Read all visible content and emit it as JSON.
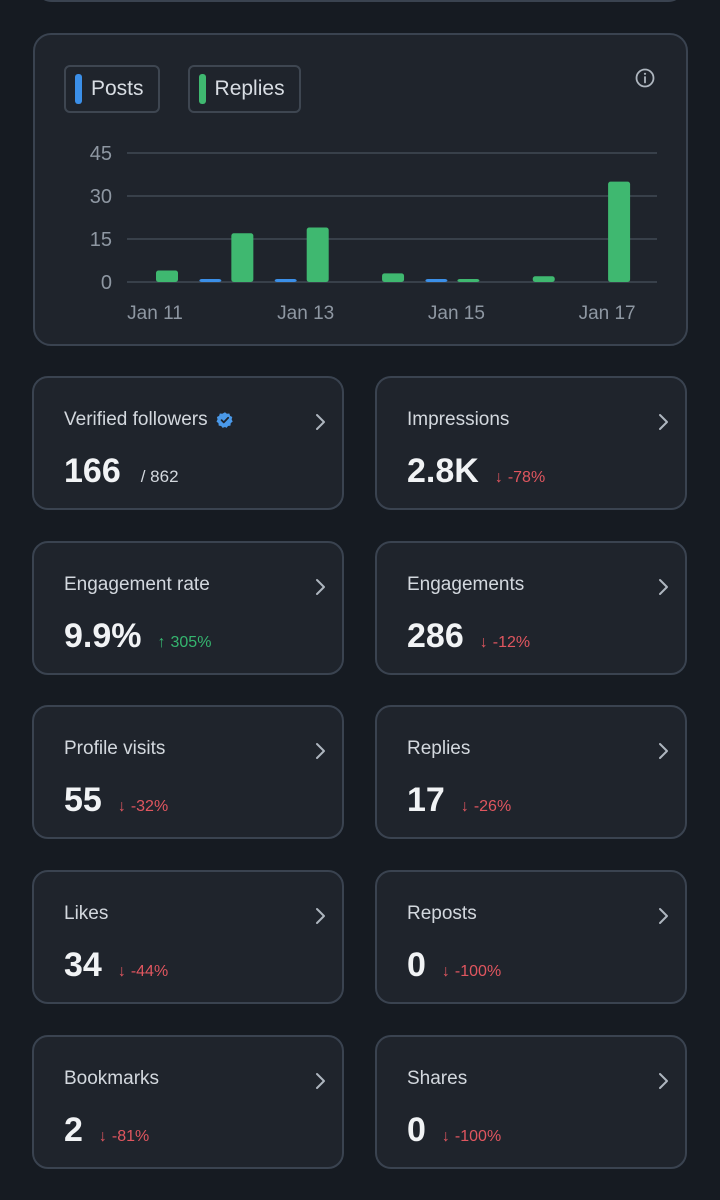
{
  "chart_data": {
    "type": "bar",
    "categories": [
      "Jan 11",
      "Jan 12",
      "Jan 13",
      "Jan 14",
      "Jan 15",
      "Jan 16",
      "Jan 17"
    ],
    "x_tick_labels": [
      "Jan 11",
      "Jan 13",
      "Jan 15",
      "Jan 17"
    ],
    "series": [
      {
        "name": "Posts",
        "color": "#3b8fe8",
        "values": [
          0,
          1,
          1,
          0,
          1,
          0,
          0
        ]
      },
      {
        "name": "Replies",
        "color": "#3fb870",
        "values": [
          4,
          17,
          19,
          3,
          1,
          2,
          35
        ]
      }
    ],
    "y_ticks": [
      0,
      15,
      30,
      45
    ],
    "ylim": [
      0,
      45
    ],
    "xlabel": "",
    "ylabel": ""
  },
  "legend": [
    {
      "label": "Posts",
      "color": "#3b8fe8"
    },
    {
      "label": "Replies",
      "color": "#3fb870"
    }
  ],
  "stats": [
    {
      "label": "Verified followers",
      "value": "166",
      "sub": "/ 862",
      "verified": true
    },
    {
      "label": "Impressions",
      "value": "2.8K",
      "arrow": "↓",
      "delta": "-78%",
      "dir": "down"
    },
    {
      "label": "Engagement rate",
      "value": "9.9%",
      "arrow": "↑",
      "delta": "305%",
      "dir": "up"
    },
    {
      "label": "Engagements",
      "value": "286",
      "arrow": "↓",
      "delta": "-12%",
      "dir": "down"
    },
    {
      "label": "Profile visits",
      "value": "55",
      "arrow": "↓",
      "delta": "-32%",
      "dir": "down"
    },
    {
      "label": "Replies",
      "value": "17",
      "arrow": "↓",
      "delta": "-26%",
      "dir": "down"
    },
    {
      "label": "Likes",
      "value": "34",
      "arrow": "↓",
      "delta": "-44%",
      "dir": "down"
    },
    {
      "label": "Reposts",
      "value": "0",
      "arrow": "↓",
      "delta": "-100%",
      "dir": "down"
    },
    {
      "label": "Bookmarks",
      "value": "2",
      "arrow": "↓",
      "delta": "-81%",
      "dir": "down"
    },
    {
      "label": "Shares",
      "value": "0",
      "arrow": "↓",
      "delta": "-100%",
      "dir": "down"
    }
  ],
  "colors": {
    "verified": "#4a99e9",
    "up": "#35b56f",
    "down": "#e0565f"
  }
}
